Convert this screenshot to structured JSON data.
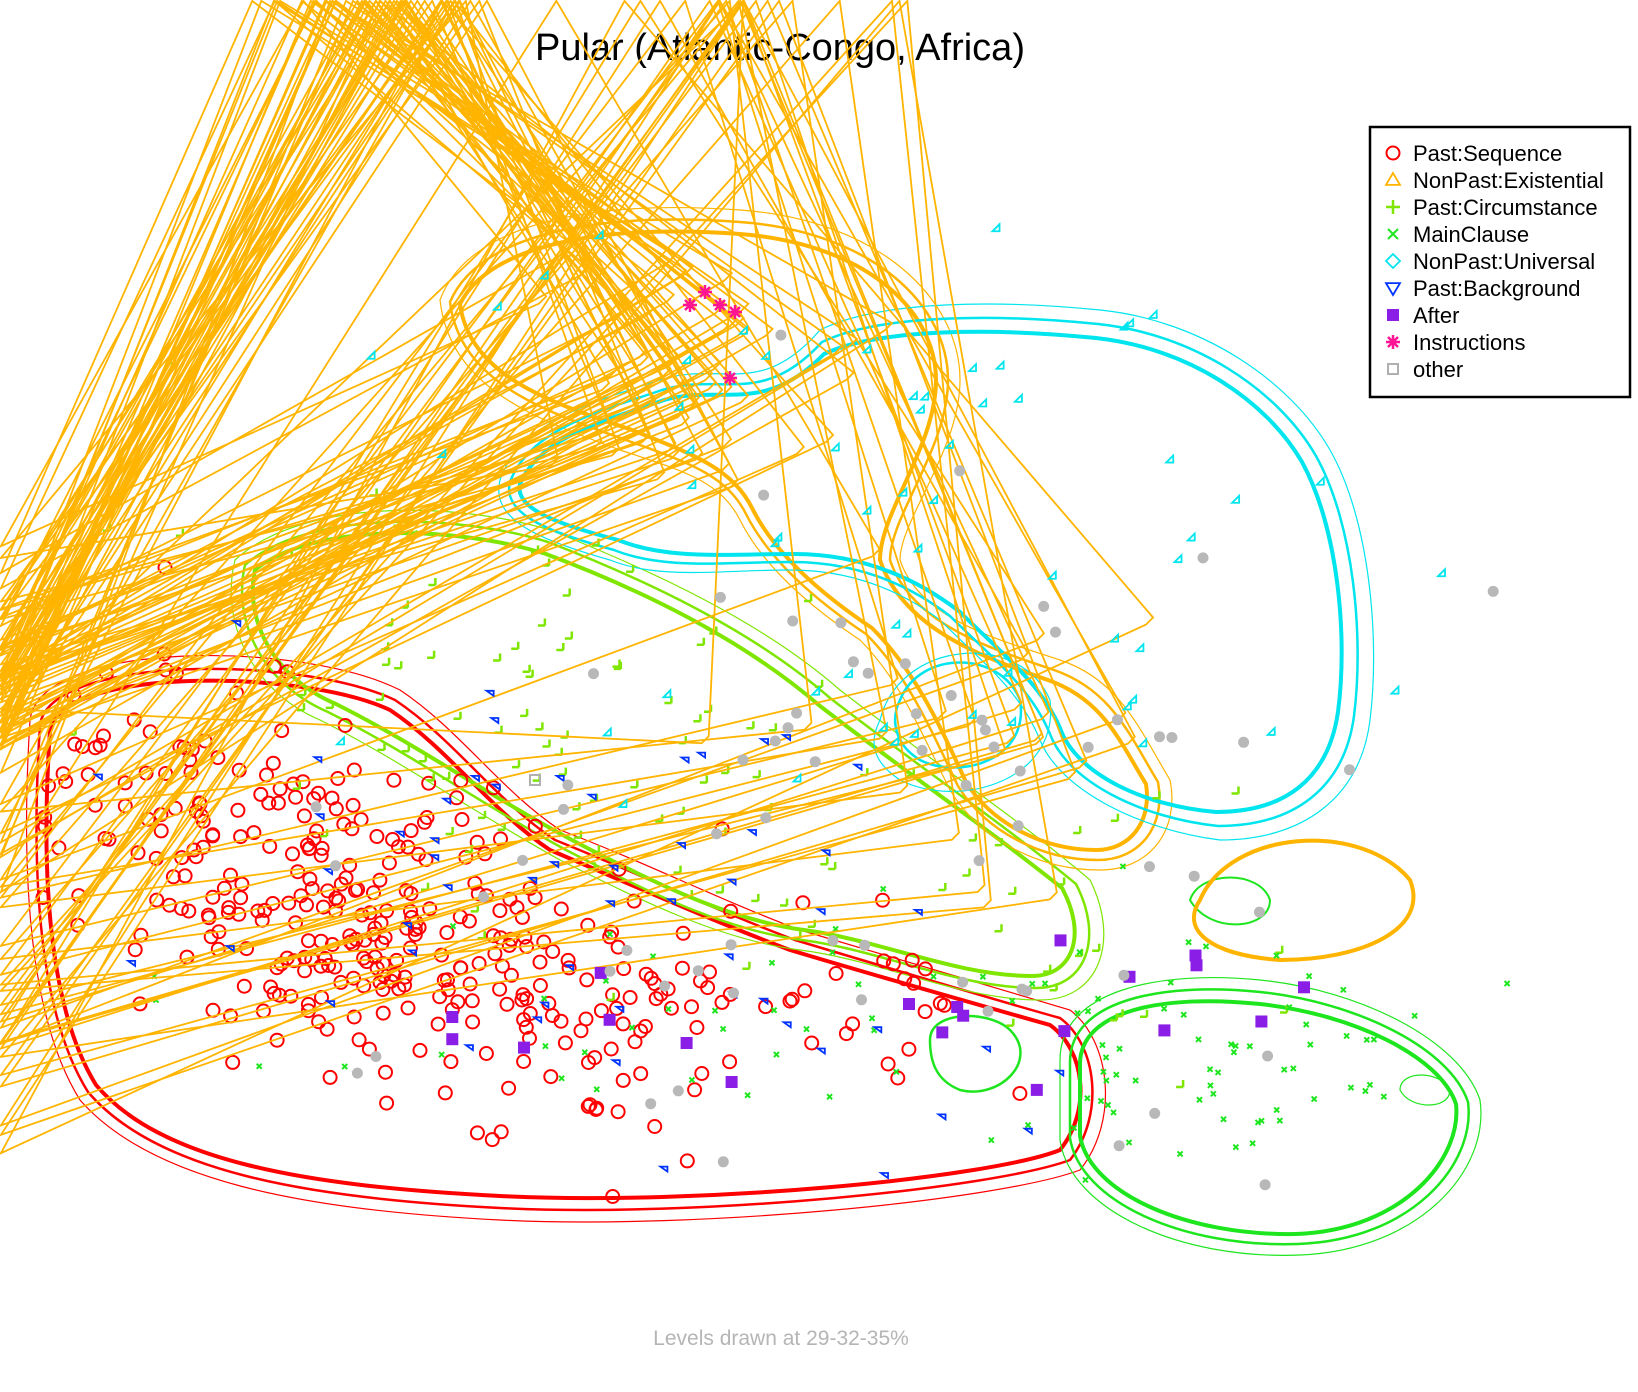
{
  "chart_data": {
    "type": "scatter",
    "title": "Pular (Atlantic-Congo, Africa)",
    "note": "Levels drawn at 29-32-35%",
    "legend_position": "top-right",
    "grid": false,
    "axes_visible": false,
    "series": [
      {
        "name": "Past:Sequence",
        "color": "#ff0000",
        "marker": "circle"
      },
      {
        "name": "NonPast:Existential",
        "color": "#ffb400",
        "marker": "triangle-up"
      },
      {
        "name": "Past:Circumstance",
        "color": "#7fe600",
        "marker": "plus"
      },
      {
        "name": "MainClause",
        "color": "#1ee61e",
        "marker": "cross"
      },
      {
        "name": "NonPast:Universal",
        "color": "#00e5ee",
        "marker": "diamond"
      },
      {
        "name": "Past:Background",
        "color": "#0033ff",
        "marker": "triangle-down"
      },
      {
        "name": "After",
        "color": "#8a1ee6",
        "marker": "square-filled"
      },
      {
        "name": "Instructions",
        "color": "#ff1493",
        "marker": "asterisk"
      },
      {
        "name": "other",
        "color": "#b0b0b0",
        "marker": "square-open"
      }
    ]
  }
}
